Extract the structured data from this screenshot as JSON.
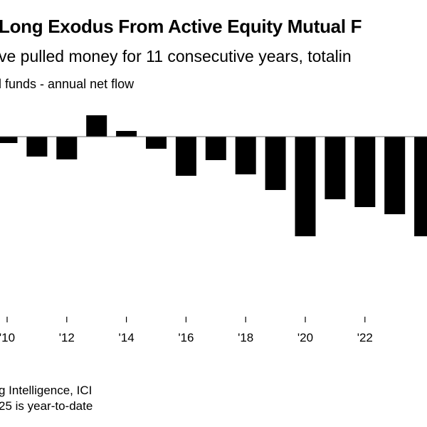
{
  "title": "Long Exodus From Active Equity Mutual F",
  "subtitle": "ve pulled money for 11 consecutive years, totalin",
  "series_label": "l funds - annual net flow",
  "source": "g Intelligence, ICI",
  "note": "25 is year-to-date",
  "chart_data": {
    "type": "bar",
    "title": "Long Exodus From Active Equity Mutual F",
    "categories": [
      "2010",
      "2011",
      "2012",
      "2013",
      "2014",
      "2015",
      "2016",
      "2017",
      "2018",
      "2019",
      "2020",
      "2021",
      "2022",
      "2023",
      "2024"
    ],
    "values": [
      -9,
      -28,
      -32,
      30,
      8,
      -17,
      -55,
      -33,
      -53,
      -75,
      -140,
      -88,
      -99,
      -109,
      -140
    ],
    "tick_labels": [
      "'10",
      "'12",
      "'14",
      "'16",
      "'18",
      "'20",
      "'22"
    ],
    "tick_years": [
      2010,
      2012,
      2014,
      2016,
      2018,
      2020,
      2022
    ],
    "bar_color": "#000000",
    "grid": false,
    "legend": "none"
  }
}
